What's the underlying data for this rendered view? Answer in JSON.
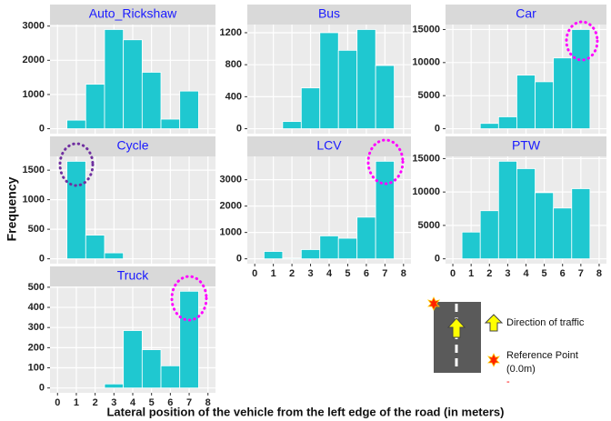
{
  "chart_data": [
    {
      "type": "histogram",
      "title": "Auto_Rickshaw",
      "bins": [
        0.5,
        1.5,
        2.5,
        3.5,
        4.5,
        5.5,
        6.5,
        7.5
      ],
      "values": [
        250,
        1300,
        2900,
        2600,
        1650,
        280,
        1100
      ],
      "color": "#1fc8d0",
      "xlim": [
        -0.4,
        8.4
      ],
      "xticks": [
        0,
        1,
        2,
        3,
        4,
        5,
        6,
        7,
        8
      ],
      "ylim": [
        -145,
        3045
      ],
      "yticks": [
        0,
        1000,
        2000,
        3000
      ],
      "grid": true
    },
    {
      "type": "histogram",
      "title": "Bus",
      "bins": [
        0.5,
        1.5,
        2.5,
        3.5,
        4.5,
        5.5,
        6.5,
        7.5
      ],
      "values": [
        0,
        90,
        510,
        1200,
        980,
        1240,
        790
      ],
      "color": "#1fc8d0",
      "xlim": [
        -0.4,
        8.4
      ],
      "xticks": [
        0,
        1,
        2,
        3,
        4,
        5,
        6,
        7,
        8
      ],
      "ylim": [
        -62,
        1302
      ],
      "yticks": [
        0,
        400,
        800,
        1200
      ],
      "grid": true
    },
    {
      "type": "histogram",
      "title": "Car",
      "bins": [
        0.5,
        1.5,
        2.5,
        3.5,
        4.5,
        5.5,
        6.5,
        7.5
      ],
      "values": [
        0,
        800,
        1800,
        8100,
        7100,
        10700,
        15000
      ],
      "color": "#1fc8d0",
      "xlim": [
        -0.4,
        8.4
      ],
      "xticks": [
        0,
        1,
        2,
        3,
        4,
        5,
        6,
        7,
        8
      ],
      "ylim": [
        -750,
        15750
      ],
      "yticks": [
        0,
        5000,
        10000,
        15000
      ],
      "grid": true
    },
    {
      "type": "histogram",
      "title": "Cycle",
      "bins": [
        0.5,
        1.5,
        2.5,
        3.5,
        4.5,
        5.5,
        6.5,
        7.5
      ],
      "values": [
        1650,
        400,
        100,
        0,
        0,
        0,
        0
      ],
      "color": "#1fc8d0",
      "xlim": [
        -0.4,
        8.4
      ],
      "xticks": [
        0,
        1,
        2,
        3,
        4,
        5,
        6,
        7,
        8
      ],
      "ylim": [
        -83,
        1733
      ],
      "yticks": [
        0,
        500,
        1000,
        1500
      ],
      "grid": true
    },
    {
      "type": "histogram",
      "title": "LCV",
      "bins": [
        0.5,
        1.5,
        2.5,
        3.5,
        4.5,
        5.5,
        6.5,
        7.5
      ],
      "values": [
        280,
        30,
        350,
        870,
        780,
        1580,
        3700
      ],
      "color": "#1fc8d0",
      "xlim": [
        -0.4,
        8.4
      ],
      "xticks": [
        0,
        1,
        2,
        3,
        4,
        5,
        6,
        7,
        8
      ],
      "ylim": [
        -185,
        3885
      ],
      "yticks": [
        0,
        1000,
        2000,
        3000
      ],
      "grid": true
    },
    {
      "type": "histogram",
      "title": "PTW",
      "bins": [
        0.5,
        1.5,
        2.5,
        3.5,
        4.5,
        5.5,
        6.5,
        7.5
      ],
      "values": [
        4000,
        7200,
        14600,
        13500,
        9900,
        7600,
        10500
      ],
      "color": "#1fc8d0",
      "xlim": [
        -0.4,
        8.4
      ],
      "xticks": [
        0,
        1,
        2,
        3,
        4,
        5,
        6,
        7,
        8
      ],
      "ylim": [
        -730,
        15330
      ],
      "yticks": [
        0,
        5000,
        10000,
        15000
      ],
      "grid": true
    },
    {
      "type": "histogram",
      "title": "Truck",
      "bins": [
        0.5,
        1.5,
        2.5,
        3.5,
        4.5,
        5.5,
        6.5,
        7.5
      ],
      "values": [
        0,
        0,
        20,
        285,
        190,
        110,
        480
      ],
      "color": "#1fc8d0",
      "xlim": [
        -0.4,
        8.4
      ],
      "xticks": [
        0,
        1,
        2,
        3,
        4,
        5,
        6,
        7,
        8
      ],
      "ylim": [
        -24,
        504
      ],
      "yticks": [
        0,
        100,
        200,
        300,
        400,
        500
      ],
      "grid": true
    }
  ],
  "x_label": "Lateral position of the vehicle from the left edge of the road (in meters)",
  "y_label": "Frequency",
  "legend_box": {
    "direction": "Direction of traffic",
    "reference_lines": [
      "Reference Point",
      "(0.0m)"
    ],
    "dash": "-"
  }
}
